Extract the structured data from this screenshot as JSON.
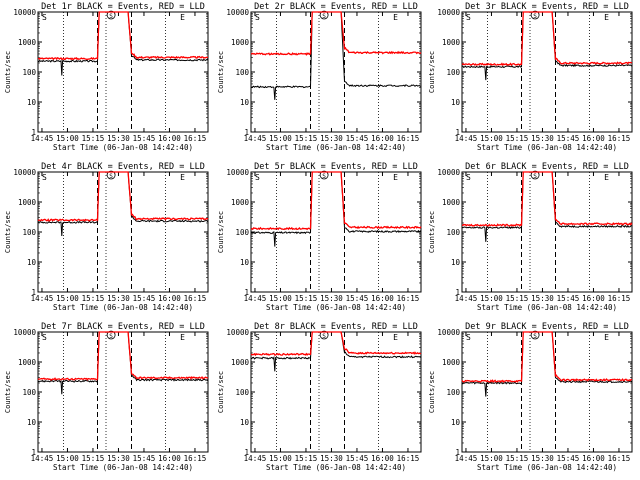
{
  "colors": {
    "background": "#ffffff",
    "events": "#000000",
    "lld": "#ff0000"
  },
  "chart_data": {
    "type": "line",
    "layout": "3x3 small multiples",
    "y_scale": "log",
    "ylim": [
      1,
      10000
    ],
    "yticks": [
      1,
      10,
      100,
      1000,
      10000
    ],
    "ylabel": "Counts/sec",
    "xlabel": "Start Time (06-Jan-08 14:42:40)",
    "xlim_minutes_from_1442_40": [
      0,
      100
    ],
    "xtick_labels": [
      "14:45",
      "15:00",
      "15:15",
      "15:30",
      "15:45",
      "16:00",
      "16:15"
    ],
    "markers": {
      "s_label": "S",
      "e_label": "E"
    },
    "panels": [
      {
        "title": "Det 1r BLACK = Events, RED = LLD",
        "black_level": 230,
        "red_level": 280,
        "vlines_dotted": [
          15,
          40,
          75
        ],
        "vlines_dashed": [
          35,
          55
        ],
        "saa_marker": 43,
        "e_marker": 85
      },
      {
        "title": "Det 2r BLACK = Events, RED = LLD",
        "black_level": 32,
        "red_level": 400,
        "vlines_dotted": [
          15,
          40,
          75
        ],
        "vlines_dashed": [
          35,
          55
        ],
        "saa_marker": 43,
        "e_marker": 85
      },
      {
        "title": "Det 3r BLACK = Events, RED = LLD",
        "black_level": 150,
        "red_level": 180,
        "vlines_dotted": [
          15,
          40,
          75
        ],
        "vlines_dashed": [
          35,
          55
        ],
        "saa_marker": 43,
        "e_marker": 85
      },
      {
        "title": "Det 4r BLACK = Events, RED = LLD",
        "black_level": 210,
        "red_level": 250,
        "vlines_dotted": [
          15,
          40,
          75
        ],
        "vlines_dashed": [
          35,
          55
        ],
        "saa_marker": 43,
        "e_marker": 85
      },
      {
        "title": "Det 5r BLACK = Events, RED = LLD",
        "black_level": 95,
        "red_level": 130,
        "vlines_dotted": [
          15,
          40,
          75
        ],
        "vlines_dashed": [
          35,
          55
        ],
        "saa_marker": 43,
        "e_marker": 85
      },
      {
        "title": "Det 6r BLACK = Events, RED = LLD",
        "black_level": 140,
        "red_level": 170,
        "vlines_dotted": [
          15,
          40,
          75
        ],
        "vlines_dashed": [
          35,
          55
        ],
        "saa_marker": 43,
        "e_marker": 85
      },
      {
        "title": "Det 7r BLACK = Events, RED = LLD",
        "black_level": 230,
        "red_level": 270,
        "vlines_dotted": [
          15,
          40,
          75
        ],
        "vlines_dashed": [
          35,
          55
        ],
        "saa_marker": 43,
        "e_marker": 85
      },
      {
        "title": "Det 8r BLACK = Events, RED = LLD",
        "black_level": 1350,
        "red_level": 1800,
        "vlines_dotted": [
          15,
          40,
          75
        ],
        "vlines_dashed": [
          35,
          55
        ],
        "saa_marker": 43,
        "e_marker": 85
      },
      {
        "title": "Det 9r BLACK = Events, RED = LLD",
        "black_level": 200,
        "red_level": 230,
        "vlines_dotted": [
          15,
          40,
          75
        ],
        "vlines_dashed": [
          35,
          55
        ],
        "saa_marker": 43,
        "e_marker": 85
      }
    ]
  }
}
